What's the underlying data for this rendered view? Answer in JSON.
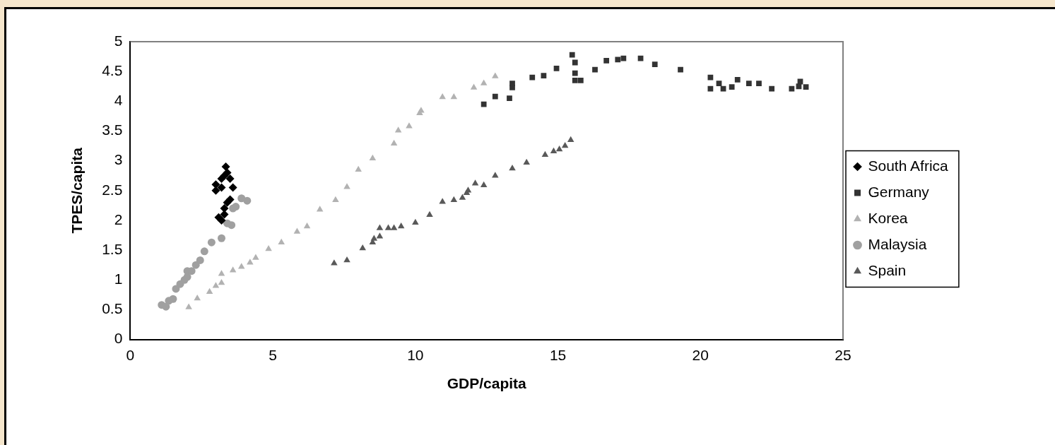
{
  "chart_data": {
    "type": "scatter",
    "xlabel": "GDP/capita",
    "ylabel": "TPES/capita",
    "xlim": [
      0,
      25
    ],
    "xticks": [
      0,
      5,
      10,
      15,
      20,
      25
    ],
    "ylim": [
      0,
      5
    ],
    "yticks": [
      0,
      0.5,
      1,
      1.5,
      2,
      2.5,
      3,
      3.5,
      4,
      4.5,
      5
    ],
    "grid": false,
    "legend": "right",
    "series": [
      {
        "name": "South Africa",
        "color": "#000000",
        "marker": "diamond",
        "x": [
          3.0,
          3.2,
          3.3,
          3.35,
          3.4,
          3.5,
          3.6,
          3.5,
          3.4,
          3.3,
          3.3,
          3.2,
          3.1,
          3.0,
          3.2
        ],
        "values": [
          2.5,
          2.7,
          2.75,
          2.9,
          2.8,
          2.7,
          2.55,
          2.35,
          2.3,
          2.2,
          2.1,
          2.0,
          2.05,
          2.6,
          2.55
        ]
      },
      {
        "name": "Germany",
        "color": "#333333",
        "marker": "square",
        "x": [
          12.4,
          12.8,
          13.3,
          13.4,
          13.4,
          14.1,
          14.5,
          14.95,
          15.5,
          15.6,
          15.6,
          15.6,
          15.8,
          16.3,
          16.7,
          17.1,
          17.3,
          17.9,
          18.4,
          19.3,
          20.35,
          20.35,
          20.65,
          20.8,
          21.1,
          21.3,
          21.7,
          22.05,
          22.5,
          23.2,
          23.5,
          23.45,
          23.7
        ],
        "values": [
          3.95,
          4.08,
          4.05,
          4.3,
          4.23,
          4.4,
          4.43,
          4.55,
          4.78,
          4.65,
          4.47,
          4.35,
          4.35,
          4.53,
          4.68,
          4.7,
          4.72,
          4.72,
          4.62,
          4.53,
          4.4,
          4.21,
          4.3,
          4.21,
          4.24,
          4.36,
          4.3,
          4.3,
          4.21,
          4.21,
          4.33,
          4.25,
          4.24
        ]
      },
      {
        "name": "Korea",
        "color": "#b2b2b2",
        "marker": "triangle",
        "x": [
          2.05,
          2.35,
          2.78,
          3.0,
          3.2,
          3.2,
          3.6,
          3.9,
          4.2,
          4.4,
          4.85,
          5.3,
          5.85,
          6.2,
          6.65,
          7.2,
          7.6,
          8.0,
          8.5,
          9.25,
          9.4,
          9.78,
          10.2,
          10.15,
          10.95,
          11.35,
          12.05,
          12.4,
          12.8
        ],
        "values": [
          0.54,
          0.69,
          0.8,
          0.9,
          0.95,
          1.1,
          1.16,
          1.22,
          1.29,
          1.37,
          1.52,
          1.63,
          1.81,
          1.9,
          2.18,
          2.34,
          2.56,
          2.85,
          3.04,
          3.29,
          3.51,
          3.58,
          3.84,
          3.8,
          4.07,
          4.07,
          4.23,
          4.3,
          4.42
        ]
      },
      {
        "name": "Malaysia",
        "color": "#a0a0a0",
        "marker": "circle",
        "x": [
          1.1,
          1.25,
          1.35,
          1.5,
          1.6,
          1.75,
          1.9,
          2.0,
          2.0,
          2.15,
          2.3,
          2.45,
          2.6,
          2.85,
          3.2,
          3.55,
          3.4,
          3.6,
          3.7,
          3.9,
          4.1
        ],
        "values": [
          0.58,
          0.55,
          0.65,
          0.68,
          0.85,
          0.93,
          1.0,
          1.05,
          1.15,
          1.15,
          1.25,
          1.33,
          1.48,
          1.63,
          1.7,
          1.92,
          1.95,
          2.2,
          2.23,
          2.37,
          2.33
        ]
      },
      {
        "name": "Spain",
        "color": "#595959",
        "marker": "triangle",
        "x": [
          7.15,
          7.6,
          8.15,
          8.5,
          8.55,
          8.75,
          8.75,
          9.05,
          9.25,
          9.5,
          10.0,
          10.5,
          10.95,
          11.35,
          11.65,
          11.8,
          11.85,
          12.1,
          12.4,
          12.8,
          13.4,
          13.9,
          14.55,
          14.85,
          15.05,
          15.25,
          15.45
        ],
        "values": [
          1.28,
          1.33,
          1.53,
          1.63,
          1.69,
          1.73,
          1.87,
          1.87,
          1.87,
          1.9,
          1.96,
          2.09,
          2.31,
          2.34,
          2.38,
          2.46,
          2.5,
          2.62,
          2.59,
          2.75,
          2.87,
          2.97,
          3.1,
          3.16,
          3.19,
          3.25,
          3.35
        ]
      }
    ]
  }
}
